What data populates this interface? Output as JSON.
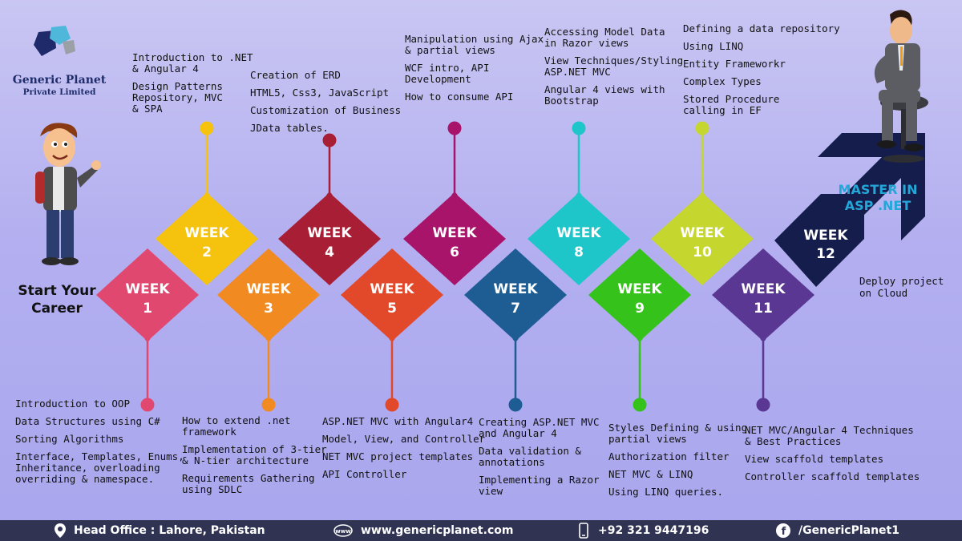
{
  "logo": {
    "name": "Generic Planet",
    "subtitle": "Private Limited"
  },
  "start_label": [
    "Start Your",
    "Career"
  ],
  "master_label": [
    "MASTER IN",
    "ASP .NET"
  ],
  "week_word": "WEEK",
  "weeks": [
    {
      "num": "1",
      "color": "#e04870",
      "notes": [
        "Introduction to OOP",
        "Data Structures using C#",
        "Sorting Algorithms",
        "Interface, Templates, Enums,\nInheritance, overloading\noverriding & namespace."
      ]
    },
    {
      "num": "2",
      "color": "#f5c20d",
      "notes": [
        "Introduction to .NET\n& Angular 4",
        "Design Patterns\nRepository, MVC\n& SPA"
      ]
    },
    {
      "num": "3",
      "color": "#f18a20",
      "notes": [
        "How to extend .net\nframework",
        "Implementation of 3-tier\n& N-tier architecture",
        "Requirements Gathering\nusing SDLC"
      ]
    },
    {
      "num": "4",
      "color": "#a81f35",
      "notes": [
        "Creation of ERD",
        "HTML5, Css3, JavaScript",
        "Customization of Business",
        "JData tables."
      ]
    },
    {
      "num": "5",
      "color": "#e2482a",
      "notes": [
        "ASP.NET MVC with Angular4",
        "Model, View, and Controller",
        "NET MVC project templates",
        "API Controller"
      ]
    },
    {
      "num": "6",
      "color": "#a8146a",
      "notes": [
        "Manipulation using Ajax\n& partial views",
        "WCF intro, API\nDevelopment",
        "How to consume API"
      ]
    },
    {
      "num": "7",
      "color": "#1e5d94",
      "notes": [
        "Creating ASP.NET MVC\nand Angular 4",
        "Data validation &\nannotations",
        "Implementing a Razor\nview"
      ]
    },
    {
      "num": "8",
      "color": "#1fc6c9",
      "notes": [
        "Accessing Model Data\nin Razor views",
        "View Techniques/Styling\nASP.NET MVC",
        "Angular 4 views with\nBootstrap"
      ]
    },
    {
      "num": "9",
      "color": "#35c21b",
      "notes": [
        "Styles Defining & using\npartial views",
        "Authorization filter",
        "NET MVC & LINQ",
        "Using LINQ queries."
      ]
    },
    {
      "num": "10",
      "color": "#c5d62f",
      "notes": [
        "Defining a data repository",
        "Using LINQ",
        "Entity Frameworkr",
        "Complex Types",
        "Stored Procedure\ncalling in EF"
      ]
    },
    {
      "num": "11",
      "color": "#5a3792",
      "notes": [
        "NET MVC/Angular 4 Techniques\n& Best Practices",
        "View scaffold templates",
        "Controller scaffold templates"
      ]
    },
    {
      "num": "12",
      "color": "#151d4d",
      "notes": [
        "Deploy project\non Cloud"
      ]
    }
  ],
  "footer": {
    "office": "Head Office : Lahore, Pakistan",
    "website": "www.genericplanet.com",
    "phone": "+92 321 9447196",
    "facebook": "/GenericPlanet1"
  },
  "icons": {
    "office": "location-pin-icon",
    "website": "globe-icon",
    "phone": "phone-icon",
    "facebook": "facebook-icon"
  }
}
